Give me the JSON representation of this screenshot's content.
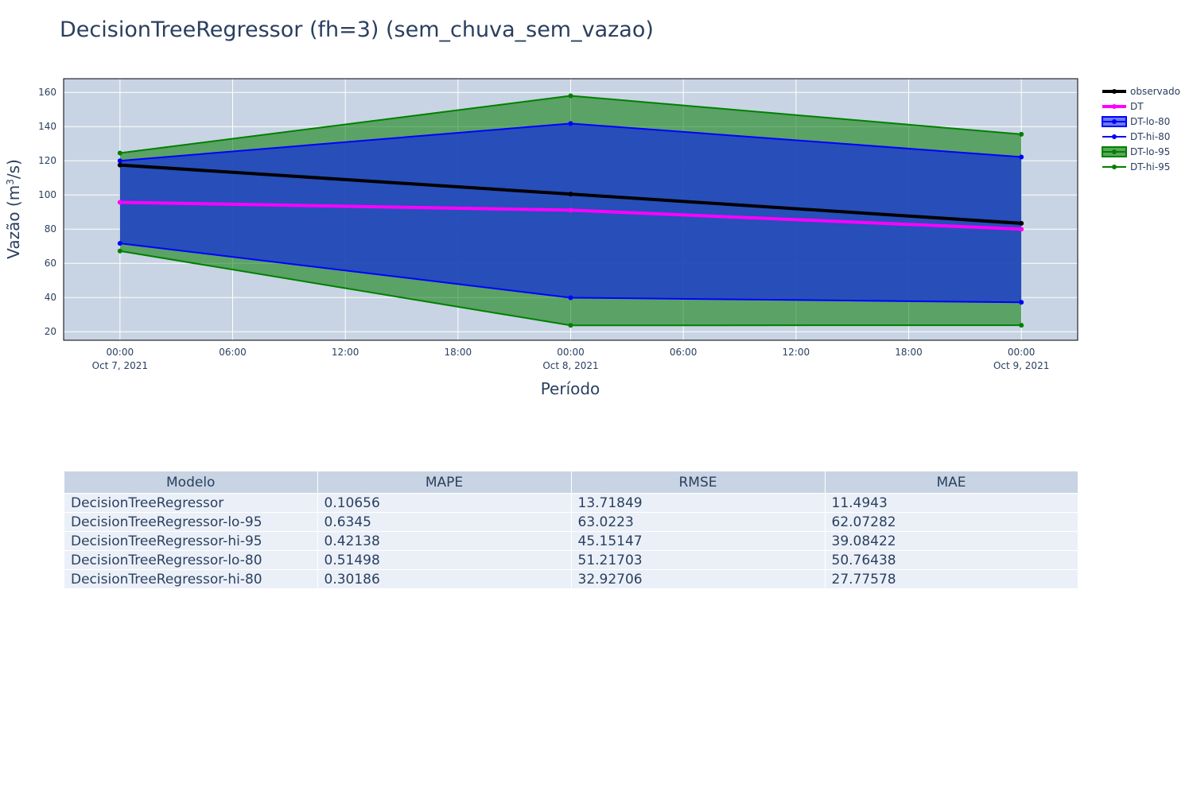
{
  "title": "DecisionTreeRegressor (fh=3) (sem_chuva_sem_vazao)",
  "chart_data": {
    "type": "line",
    "title": "DecisionTreeRegressor (fh=3) (sem_chuva_sem_vazao)",
    "xlabel": "Período",
    "ylabel_main": "Vazão (m",
    "ylabel_sup": "3",
    "ylabel_end": "/s)",
    "x": [
      "2021-10-07 00:00",
      "2021-10-08 00:00",
      "2021-10-09 00:00"
    ],
    "xlim": [
      "2021-10-06 21:00",
      "2021-10-09 03:00"
    ],
    "xticks": [
      {
        "hour": 0,
        "main": "00:00",
        "sub": "Oct 7, 2021"
      },
      {
        "hour": 6,
        "main": "06:00",
        "sub": ""
      },
      {
        "hour": 12,
        "main": "12:00",
        "sub": ""
      },
      {
        "hour": 18,
        "main": "18:00",
        "sub": ""
      },
      {
        "hour": 24,
        "main": "00:00",
        "sub": "Oct 8, 2021"
      },
      {
        "hour": 30,
        "main": "06:00",
        "sub": ""
      },
      {
        "hour": 36,
        "main": "12:00",
        "sub": ""
      },
      {
        "hour": 42,
        "main": "18:00",
        "sub": ""
      },
      {
        "hour": 48,
        "main": "00:00",
        "sub": "Oct 9, 2021"
      }
    ],
    "ylim": [
      15,
      168
    ],
    "yticks": [
      20,
      40,
      60,
      80,
      100,
      120,
      140,
      160
    ],
    "grid": true,
    "legend_position": "right",
    "bands": [
      {
        "name": "DT-95",
        "lo": [
          67.2,
          23.7,
          23.8
        ],
        "hi": [
          124.5,
          158,
          135.5
        ],
        "fill": "#007800",
        "opacity": 0.55
      },
      {
        "name": "DT-80",
        "lo": [
          71.7,
          39.9,
          37.2
        ],
        "hi": [
          120,
          141.8,
          122.2
        ],
        "fill": "#1e3fc8",
        "opacity": 0.85
      }
    ],
    "series": [
      {
        "name": "DT-lo-95",
        "values": [
          67.2,
          23.7,
          23.8
        ],
        "color": "#008000",
        "width": 2
      },
      {
        "name": "DT-hi-95",
        "values": [
          124.5,
          158,
          135.5
        ],
        "color": "#008000",
        "width": 2
      },
      {
        "name": "DT-lo-80",
        "values": [
          71.7,
          39.9,
          37.2
        ],
        "color": "#0000ff",
        "width": 2
      },
      {
        "name": "DT-hi-80",
        "values": [
          120,
          141.8,
          122.2
        ],
        "color": "#0000ff",
        "width": 2
      },
      {
        "name": "DT",
        "values": [
          95.7,
          91.1,
          80
        ],
        "color": "#ff00ff",
        "width": 4
      },
      {
        "name": "observado",
        "values": [
          117.5,
          100.5,
          83.4
        ],
        "color": "#000000",
        "width": 4
      }
    ],
    "legend": [
      {
        "name": "observado",
        "color": "#000000",
        "kind": "line-thick"
      },
      {
        "name": "DT",
        "color": "#ff00ff",
        "kind": "line-thick"
      },
      {
        "name": "DT-lo-80",
        "color": "#0000ff",
        "kind": "fill",
        "fill": "#6b7cf0"
      },
      {
        "name": "DT-hi-80",
        "color": "#0000ff",
        "kind": "line"
      },
      {
        "name": "DT-lo-95",
        "color": "#008000",
        "kind": "fill",
        "fill": "#5aa85a"
      },
      {
        "name": "DT-hi-95",
        "color": "#008000",
        "kind": "line"
      }
    ]
  },
  "table": {
    "headers": [
      "Modelo",
      "MAPE",
      "RMSE",
      "MAE"
    ],
    "rows": [
      [
        "DecisionTreeRegressor",
        "0.10656",
        "13.71849",
        "11.4943"
      ],
      [
        "DecisionTreeRegressor-lo-95",
        "0.6345",
        "63.0223",
        "62.07282"
      ],
      [
        "DecisionTreeRegressor-hi-95",
        "0.42138",
        "45.15147",
        "39.08422"
      ],
      [
        "DecisionTreeRegressor-lo-80",
        "0.51498",
        "51.21703",
        "50.76438"
      ],
      [
        "DecisionTreeRegressor-hi-80",
        "0.30186",
        "32.92706",
        "27.77578"
      ]
    ]
  },
  "colors": {
    "plot_bg": "#c8d4e3",
    "grid": "#ffffff",
    "header_bg": "#c8d4e3",
    "cell_bg": "#ebf0f8",
    "text": "#2a3f5f"
  }
}
